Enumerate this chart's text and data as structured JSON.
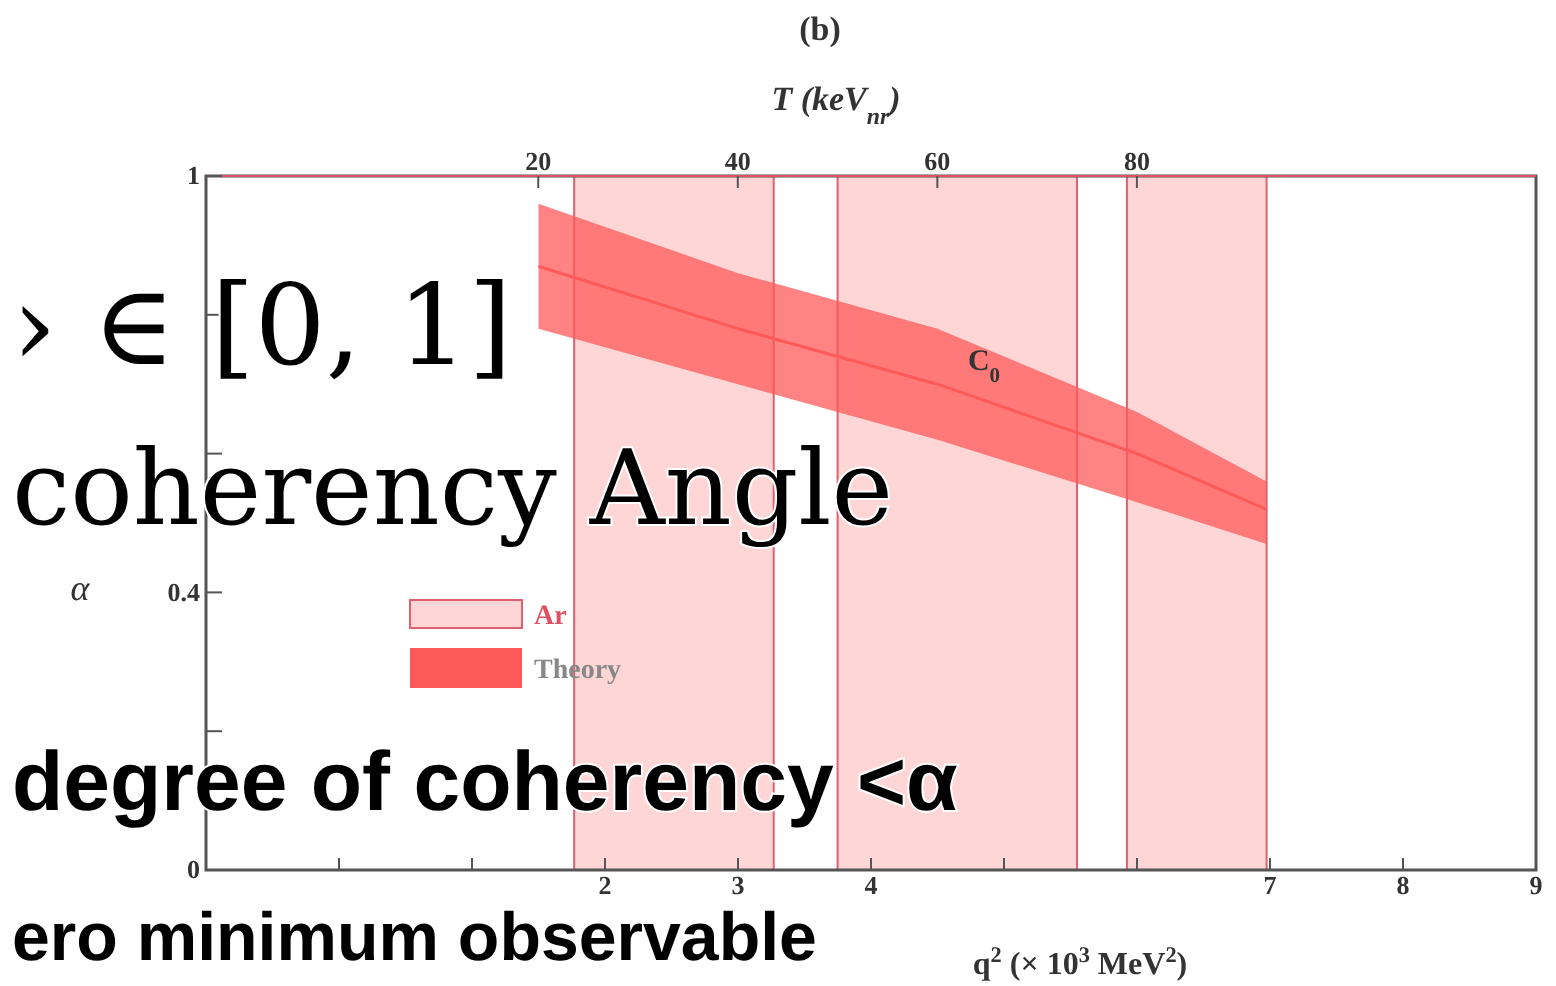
{
  "chart_data": {
    "type": "line",
    "title": "(b)",
    "xlabel": "q$^{2}$ (× 10$^{3}$ MeV$^{2}$)",
    "x2label": "T (keV$_{nr}$)",
    "ylabel": "α",
    "xlim": [
      -1,
      9
    ],
    "xticks": [
      {
        "value": 0,
        "label": null
      },
      {
        "value": 1,
        "label": null
      },
      2,
      3,
      4,
      {
        "value": 5,
        "label": null
      },
      {
        "value": 6,
        "label": null
      },
      7,
      8,
      9
    ],
    "x2lim": [
      -13.3,
      120
    ],
    "x2ticks": [
      20,
      40,
      60,
      80
    ],
    "ylim": [
      0,
      1
    ],
    "yticks": [
      {
        "value": 0,
        "label": "0"
      },
      {
        "value": 0.2,
        "label": null
      },
      {
        "value": 0.4,
        "label": "0.4"
      },
      {
        "value": 0.6,
        "label": null
      },
      {
        "value": 0.8,
        "label": null
      },
      {
        "value": 1,
        "label": "1"
      }
    ],
    "series": [
      {
        "name": "Theory",
        "color": "#ff5a5a",
        "x": [
          1.5,
          3,
          4.5,
          6,
          6.97
        ],
        "values": [
          0.87,
          0.78,
          0.7,
          0.6,
          0.52
        ],
        "lower": [
          0.78,
          0.7,
          0.62,
          0.53,
          0.47
        ],
        "upper": [
          0.96,
          0.86,
          0.78,
          0.66,
          0.56
        ]
      }
    ],
    "bands": [
      {
        "axis": "x2",
        "from": 23.6,
        "to": 43.6,
        "label": "Ar",
        "color": "#ffd6d6"
      },
      {
        "axis": "x2",
        "from": 50,
        "to": 74,
        "color": "#ffd6d6"
      },
      {
        "axis": "x2",
        "from": 79,
        "to": 93,
        "color": "#ffd6d6"
      }
    ],
    "legend": "bottom left",
    "annotations": [
      "C$_{0}$",
      "› ∈ [0, 1]",
      "coherency Angle",
      "degree of coherency <α",
      "ero minimum observable"
    ]
  }
}
